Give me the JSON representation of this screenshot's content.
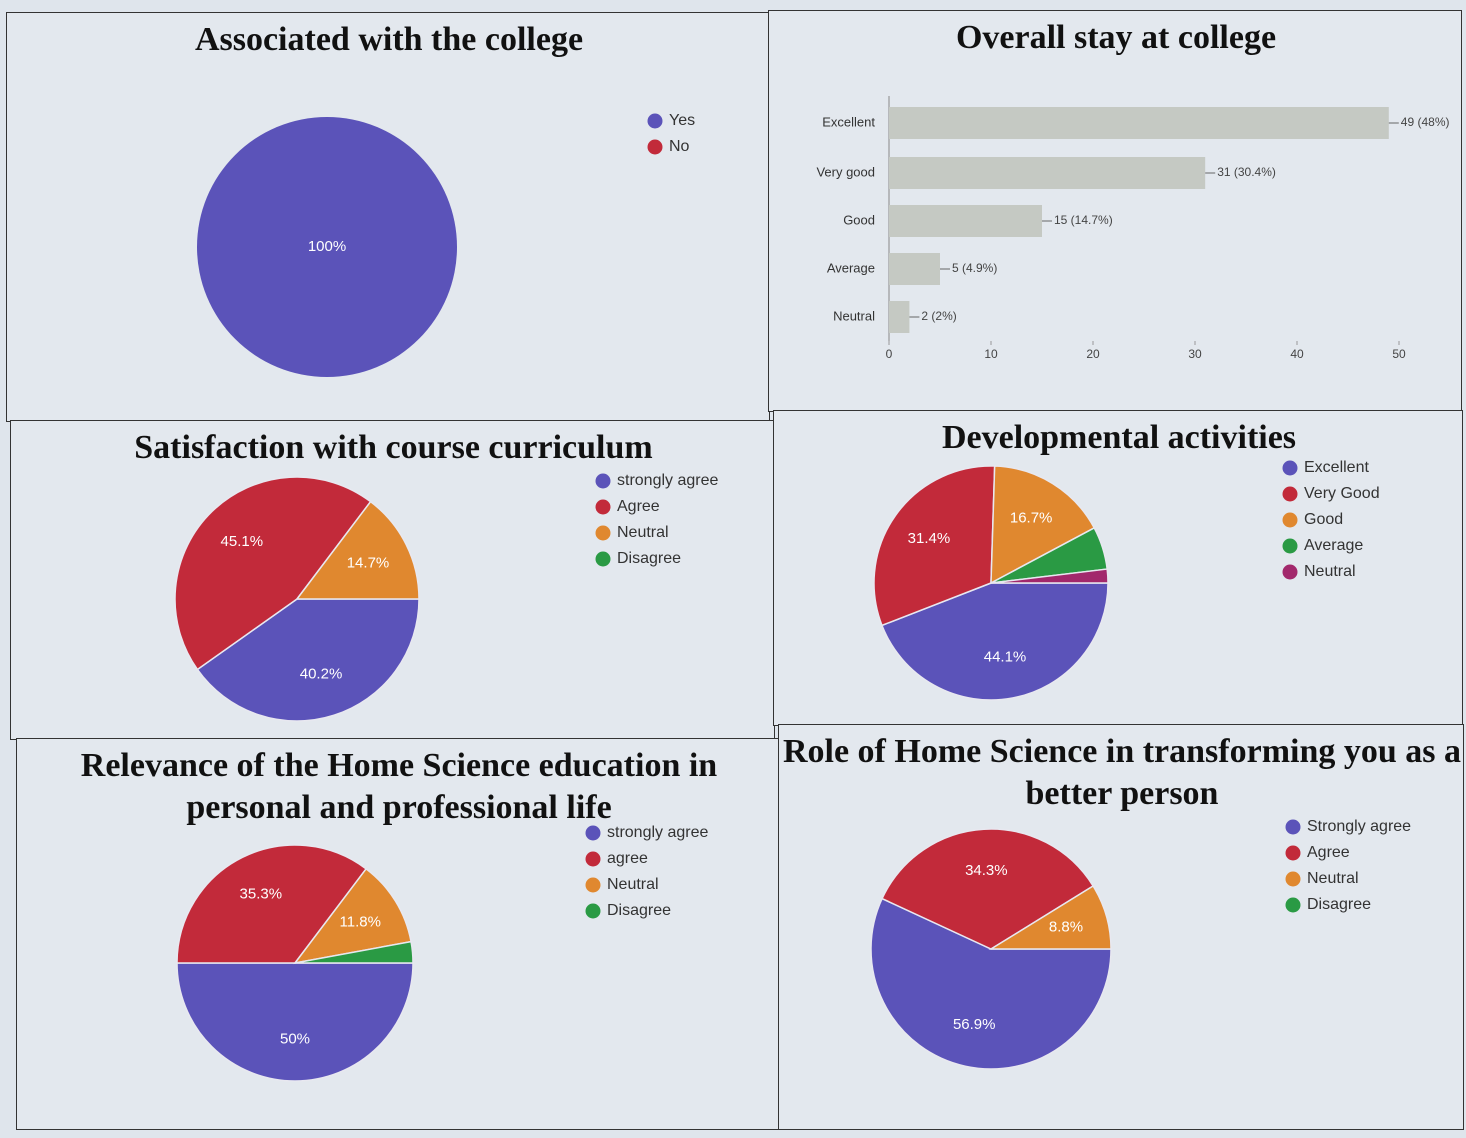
{
  "chart_data": [
    {
      "type": "pie",
      "title": "Associated with the college",
      "categories": [
        "Yes",
        "No"
      ],
      "values": [
        100,
        0
      ],
      "value_labels": [
        "100%",
        null
      ],
      "colors": [
        "#5b53b9",
        "#c22a3a"
      ]
    },
    {
      "type": "bar",
      "title": "Overall stay at college",
      "categories": [
        "Excellent",
        "Very good",
        "Good",
        "Average",
        "Neutral"
      ],
      "values": [
        49,
        31,
        15,
        5,
        2
      ],
      "value_labels": [
        "49 (48%)",
        "31 (30.4%)",
        "15 (14.7%)",
        "5 (4.9%)",
        "2 (2%)"
      ],
      "color": "#c5c9c3",
      "xlim": [
        0,
        50
      ],
      "xticks": [
        0,
        10,
        20,
        30,
        40,
        50
      ]
    },
    {
      "type": "pie",
      "title": "Satisfaction with course curriculum",
      "categories": [
        "strongly agree",
        "Agree",
        "Neutral",
        "Disagree"
      ],
      "values": [
        40.2,
        45.1,
        14.7,
        0
      ],
      "value_labels": [
        "40.2%",
        "45.1%",
        "14.7%",
        null
      ],
      "colors": [
        "#5b53b9",
        "#c22a3a",
        "#e0882f",
        "#2a9a44"
      ]
    },
    {
      "type": "pie",
      "title": "Developmental activities",
      "categories": [
        "Excellent",
        "Very Good",
        "Good",
        "Average",
        "Neutral"
      ],
      "values": [
        44.1,
        31.4,
        16.7,
        5.9,
        1.9
      ],
      "value_labels": [
        "44.1%",
        "31.4%",
        "16.7%",
        null,
        null
      ],
      "colors": [
        "#5b53b9",
        "#c22a3a",
        "#e0882f",
        "#2a9a44",
        "#a2286c"
      ]
    },
    {
      "type": "pie",
      "title": "Relevance of the Home Science education in personal and professional life",
      "categories": [
        "strongly agree",
        "agree",
        "Neutral",
        "Disagree"
      ],
      "values": [
        50,
        35.3,
        11.8,
        2.9
      ],
      "value_labels": [
        "50%",
        "35.3%",
        "11.8%",
        null
      ],
      "colors": [
        "#5b53b9",
        "#c22a3a",
        "#e0882f",
        "#2a9a44"
      ]
    },
    {
      "type": "pie",
      "title": "Role of Home Science in transforming you as a better person",
      "categories": [
        "Strongly agree",
        "Agree",
        "Neutral",
        "Disagree"
      ],
      "values": [
        56.9,
        34.3,
        8.8,
        0
      ],
      "value_labels": [
        "56.9%",
        "34.3%",
        "8.8%",
        null
      ],
      "colors": [
        "#5b53b9",
        "#c22a3a",
        "#e0882f",
        "#2a9a44"
      ]
    }
  ]
}
